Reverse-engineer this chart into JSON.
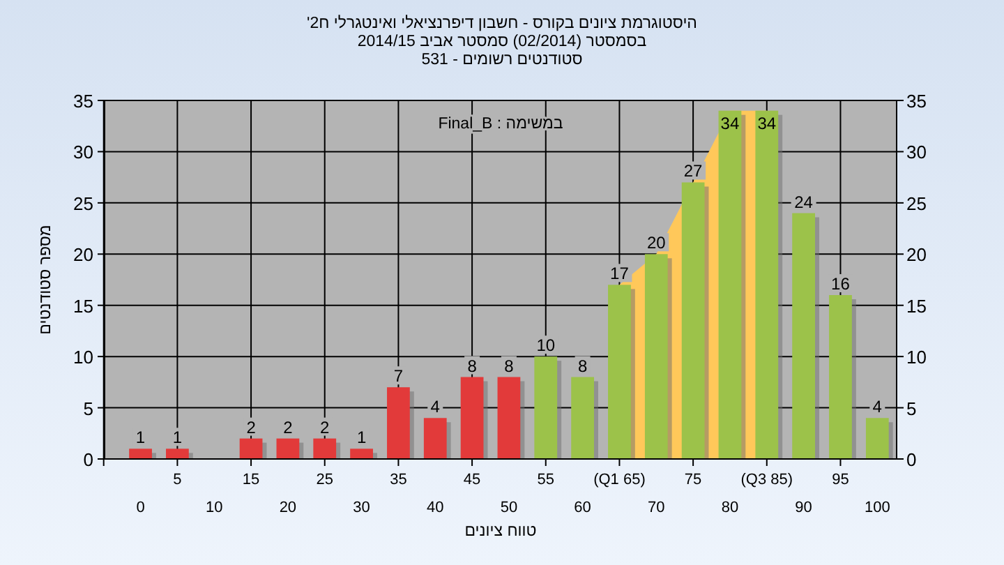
{
  "chart_data": {
    "type": "bar",
    "title": "היסטוגרמת ציונים בקורס - חשבון דיפרנציאלי ואינטגרלי ח2'",
    "subtitle": "בסמסטר  (02/2014)  סמסטר אביב 2014/15\nסטודנטים רשומים - 531",
    "xlabel": "טווח ציונים",
    "ylabel": "מספר סטודנטים",
    "annotations": [
      "במשימה : Final_B"
    ],
    "categories": [
      "0",
      "5",
      "10",
      "15",
      "20",
      "25",
      "30",
      "35",
      "40",
      "45",
      "50",
      "55",
      "60",
      "(Q1 65)",
      "70",
      "75",
      "80",
      "(Q3 85)",
      "90",
      "95",
      "100"
    ],
    "series": [
      {
        "type": "area",
        "color": "#ffc85a",
        "values": [
          null,
          null,
          null,
          null,
          null,
          null,
          null,
          null,
          null,
          null,
          null,
          null,
          null,
          17,
          20,
          27,
          34,
          34,
          null,
          null,
          null
        ]
      },
      {
        "values": [
          1,
          1,
          null,
          2,
          2,
          2,
          1,
          7,
          4,
          8,
          8,
          10,
          8,
          17,
          20,
          27,
          34,
          34,
          24,
          16,
          4
        ],
        "value_labels": [
          "1",
          "1",
          null,
          "2",
          "2",
          "2",
          "1",
          "7",
          "4",
          "8",
          "8",
          "10",
          "8",
          "17",
          "20",
          "27",
          "34",
          "34",
          "24",
          "16",
          "4"
        ],
        "colors": [
          "#e23a3a",
          "#e23a3a",
          "#e23a3a",
          "#e23a3a",
          "#e23a3a",
          "#e23a3a",
          "#e23a3a",
          "#e23a3a",
          "#e23a3a",
          "#e23a3a",
          "#e23a3a",
          "#9cc24a",
          "#9cc24a",
          "#9cc24a",
          "#9cc24a",
          "#9cc24a",
          "#9cc24a",
          "#9cc24a",
          "#9cc24a",
          "#9cc24a",
          "#9cc24a"
        ]
      }
    ],
    "ylim": [
      0,
      35
    ],
    "yticks": [
      0,
      5,
      10,
      15,
      20,
      25,
      30,
      35
    ],
    "y2lim": [
      0,
      35
    ],
    "y2ticks": [
      0,
      5,
      10,
      15,
      20,
      25,
      30,
      35
    ],
    "grid": true
  }
}
